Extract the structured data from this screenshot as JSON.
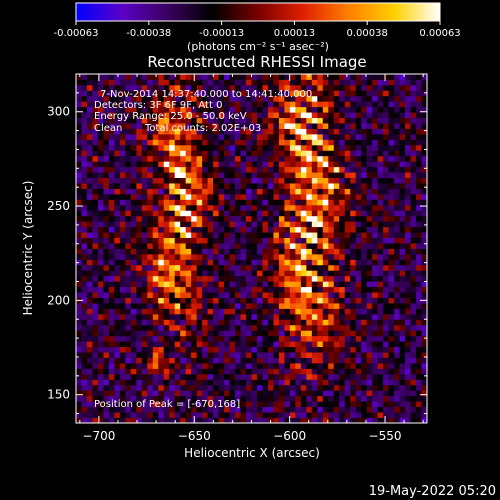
{
  "colorbar": {
    "ticks": [
      "-0.00063",
      "-0.00038",
      "-0.00013",
      "0.00013",
      "0.00038",
      "0.00063"
    ],
    "unit_label": "(photons cm⁻² s⁻¹ asec⁻²)",
    "colors": [
      "#0000ff",
      "#5a00c8",
      "#3a0060",
      "#000000",
      "#7a0000",
      "#e02000",
      "#ff8000",
      "#ffd000",
      "#ffffff"
    ]
  },
  "chart_data": {
    "type": "heatmap",
    "title": "Reconstructed RHESSI Image",
    "xlabel": "Heliocentric X (arcsec)",
    "ylabel": "Heliocentric Y (arcsec)",
    "xlim": [
      -712,
      -528
    ],
    "ylim": [
      135,
      320
    ],
    "x_ticks": [
      -700,
      -650,
      -600,
      -550
    ],
    "y_ticks": [
      150,
      200,
      250,
      300
    ],
    "x_tick_labels": [
      "−700",
      "−650",
      "−600",
      "−550"
    ],
    "y_tick_labels": [
      "150",
      "200",
      "250",
      "300"
    ],
    "value_range": [
      -0.00063,
      0.00063
    ],
    "emission_ridges": [
      {
        "x": -658,
        "y_from": 190,
        "y_to": 305,
        "width": 14,
        "peak": 0.00058
      },
      {
        "x": -590,
        "y_from": 175,
        "y_to": 320,
        "width": 16,
        "peak": 0.00063
      }
    ],
    "peak_position": [
      -670,
      168
    ]
  },
  "annotations": {
    "time_range": "7-Nov-2014 14:37:40.000 to 14:41:40.000",
    "detectors": "Detectors: 3F 6F 9F, Att 0",
    "energy_range": "Energy Range: 25.0 - 50.0 keV",
    "algorithm": "Clean",
    "total_counts": "Total counts: 2.02E+03",
    "peak_position": "Position of Peak = [-670,168]"
  },
  "footer_date": "19-May-2022 05:20"
}
